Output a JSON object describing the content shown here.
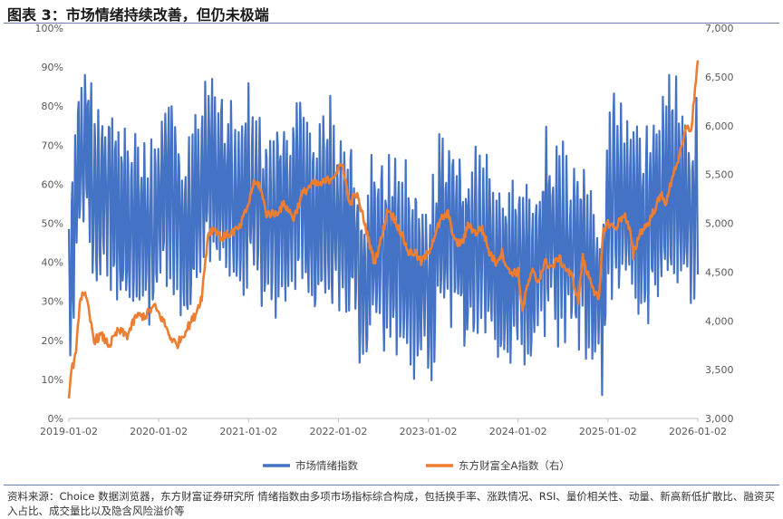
{
  "figure": {
    "title": "图表 3：市场情绪持续改善，但仍未极端",
    "source": "资料来源：Choice 数据浏览器，东方财富证券研究所 情绪指数由多项市场指标综合构成，包括换手率、涨跌情况、RSI、量价相关性、动量、新高新低扩散比、融资买入占比、成交量比以及隐含风险溢价等"
  },
  "chart_data": {
    "type": "line",
    "title": "市场情绪持续改善，但仍未极端",
    "x_tick_labels": [
      "2019-01-02",
      "2020-01-02",
      "2021-01-02",
      "2022-01-02",
      "2023-01-02",
      "2024-01-02",
      "2025-01-02",
      "2026-01-02"
    ],
    "x_range": [
      2019.0,
      2026.0
    ],
    "left_axis": {
      "ylim": [
        0,
        100
      ],
      "ticks": [
        0,
        10,
        20,
        30,
        40,
        50,
        60,
        70,
        80,
        90,
        100
      ],
      "tick_labels": [
        "0%",
        "10%",
        "20%",
        "30%",
        "40%",
        "50%",
        "60%",
        "70%",
        "80%",
        "90%",
        "100%"
      ]
    },
    "right_axis": {
      "ylim": [
        3000,
        7000
      ],
      "ticks": [
        3000,
        3500,
        4000,
        4500,
        5000,
        5500,
        6000,
        6500,
        7000
      ],
      "tick_labels": [
        "3,000",
        "3,500",
        "4,000",
        "4,500",
        "5,000",
        "5,500",
        "6,000",
        "6,500",
        "7,000"
      ]
    },
    "legend_position": "bottom",
    "colors": {
      "sentiment": "#4472C4",
      "index": "#ED7D31",
      "axis": "#bfbfbf",
      "tick_text": "#595959"
    },
    "series": [
      {
        "name": "市场情绪指数",
        "axis": "left",
        "description": "estimated envelope key points (weekly-level oscillation rendered between)",
        "x": [
          2019.0,
          2019.1,
          2019.2,
          2019.3,
          2019.45,
          2019.6,
          2019.75,
          2019.9,
          2020.0,
          2020.15,
          2020.3,
          2020.45,
          2020.6,
          2020.75,
          2020.9,
          2021.0,
          2021.15,
          2021.3,
          2021.45,
          2021.6,
          2021.75,
          2021.9,
          2022.0,
          2022.15,
          2022.3,
          2022.45,
          2022.6,
          2022.75,
          2022.9,
          2023.0,
          2023.15,
          2023.3,
          2023.45,
          2023.6,
          2023.75,
          2023.9,
          2024.0,
          2024.15,
          2024.3,
          2024.45,
          2024.6,
          2024.75,
          2024.85,
          2024.95,
          2025.0,
          2025.15,
          2025.3,
          2025.45,
          2025.6,
          2025.75,
          2025.9,
          2026.0
        ],
        "values": [
          30,
          65,
          72,
          55,
          58,
          48,
          52,
          45,
          55,
          60,
          45,
          55,
          65,
          58,
          55,
          60,
          50,
          52,
          55,
          58,
          50,
          55,
          50,
          48,
          35,
          45,
          42,
          38,
          35,
          33,
          50,
          48,
          40,
          45,
          35,
          38,
          40,
          35,
          50,
          45,
          42,
          40,
          35,
          25,
          60,
          55,
          50,
          52,
          58,
          60,
          52,
          58
        ]
      },
      {
        "name": "东方财富全A指数（右）",
        "axis": "right",
        "x": [
          2019.0,
          2019.03,
          2019.08,
          2019.12,
          2019.16,
          2019.2,
          2019.28,
          2019.36,
          2019.45,
          2019.55,
          2019.65,
          2019.75,
          2019.85,
          2019.95,
          2020.05,
          2020.12,
          2020.2,
          2020.3,
          2020.4,
          2020.48,
          2020.55,
          2020.62,
          2020.7,
          2020.8,
          2020.9,
          2021.0,
          2021.05,
          2021.12,
          2021.2,
          2021.3,
          2021.4,
          2021.5,
          2021.6,
          2021.7,
          2021.8,
          2021.9,
          2022.0,
          2022.05,
          2022.12,
          2022.2,
          2022.28,
          2022.33,
          2022.4,
          2022.48,
          2022.55,
          2022.62,
          2022.7,
          2022.78,
          2022.85,
          2022.92,
          2023.0,
          2023.08,
          2023.15,
          2023.22,
          2023.3,
          2023.38,
          2023.45,
          2023.52,
          2023.6,
          2023.68,
          2023.75,
          2023.82,
          2023.9,
          2024.0,
          2024.05,
          2024.1,
          2024.16,
          2024.22,
          2024.3,
          2024.38,
          2024.45,
          2024.52,
          2024.6,
          2024.67,
          2024.72,
          2024.76,
          2024.8,
          2024.85,
          2024.9,
          2024.95,
          2025.0,
          2025.08,
          2025.18,
          2025.25,
          2025.28,
          2025.35,
          2025.45,
          2025.52,
          2025.6,
          2025.65,
          2025.72,
          2025.8,
          2025.88,
          2025.93,
          2025.97,
          2026.0
        ],
        "values": [
          3250,
          3500,
          3650,
          4200,
          4300,
          4200,
          3800,
          3850,
          3750,
          3900,
          3850,
          4050,
          4050,
          4150,
          4000,
          3850,
          3750,
          3900,
          4050,
          4250,
          4900,
          4950,
          4850,
          4900,
          4950,
          5200,
          5400,
          5400,
          5100,
          5100,
          5200,
          5050,
          5300,
          5400,
          5400,
          5450,
          5550,
          5600,
          5200,
          5300,
          5050,
          4850,
          4600,
          4850,
          5150,
          5050,
          4900,
          4700,
          4700,
          4600,
          4700,
          4900,
          5050,
          5100,
          4800,
          4800,
          5000,
          4900,
          4950,
          4700,
          4600,
          4700,
          4500,
          4500,
          4100,
          4350,
          4500,
          4400,
          4600,
          4550,
          4650,
          4550,
          4450,
          4200,
          4650,
          4500,
          4450,
          4300,
          4200,
          4950,
          5000,
          4950,
          5100,
          4900,
          4650,
          4900,
          5000,
          5150,
          5300,
          5200,
          5500,
          5700,
          6000,
          5950,
          6400,
          6650
        ]
      }
    ]
  },
  "legend": [
    {
      "label": "市场情绪指数"
    },
    {
      "label": "东方财富全A指数（右）"
    }
  ]
}
